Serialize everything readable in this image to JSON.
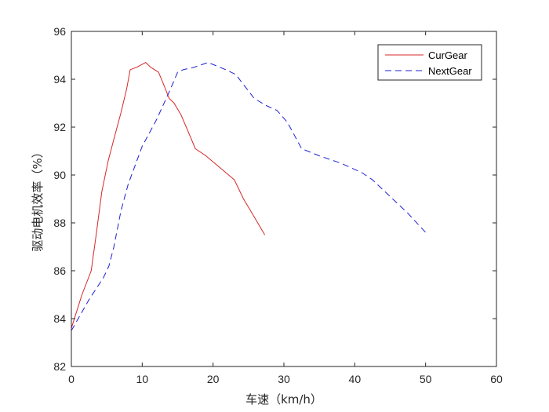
{
  "chart_data": {
    "type": "line",
    "xlabel": "车速（km/h）",
    "ylabel": "驱动电机效率（%）",
    "xlim": [
      0,
      60
    ],
    "ylim": [
      82,
      96
    ],
    "xticks": [
      0,
      10,
      20,
      30,
      40,
      50,
      60
    ],
    "yticks": [
      82,
      84,
      86,
      88,
      90,
      92,
      94,
      96
    ],
    "grid": false,
    "legend_position": "top-right",
    "series": [
      {
        "name": "CurGear",
        "color": "#d62728",
        "style": "solid",
        "x": [
          0,
          1.5,
          2.8,
          3.5,
          4.3,
          5.2,
          6.0,
          7.0,
          7.8,
          8.3,
          9.2,
          10.5,
          11.2,
          12.3,
          13.0,
          13.8,
          14.5,
          15.5,
          16.5,
          17.5,
          19.0,
          21.0,
          23.0,
          24.3,
          25.5,
          27.3
        ],
        "y": [
          83.6,
          85.0,
          86.0,
          87.5,
          89.3,
          90.6,
          91.5,
          92.6,
          93.6,
          94.4,
          94.5,
          94.7,
          94.5,
          94.3,
          93.8,
          93.2,
          93.0,
          92.5,
          91.8,
          91.1,
          90.8,
          90.3,
          89.8,
          89.0,
          88.4,
          87.5
        ]
      },
      {
        "name": "NextGear",
        "color": "#1f1fd6",
        "style": "dashed",
        "x": [
          0,
          2.5,
          4.5,
          5.3,
          6.0,
          7.0,
          8.0,
          9.0,
          10.0,
          12.0,
          14.0,
          15.0,
          15.8,
          17.3,
          19.3,
          21.8,
          23.2,
          24.5,
          25.8,
          27.5,
          29.0,
          30.5,
          32.5,
          35.0,
          38.0,
          41.0,
          42.5,
          45.0,
          47.5,
          50.0
        ],
        "y": [
          83.5,
          84.8,
          85.7,
          86.2,
          87.0,
          88.5,
          89.6,
          90.4,
          91.2,
          92.3,
          93.6,
          94.3,
          94.4,
          94.5,
          94.7,
          94.4,
          94.2,
          93.7,
          93.2,
          92.9,
          92.7,
          92.2,
          91.1,
          90.8,
          90.5,
          90.1,
          89.8,
          89.1,
          88.4,
          87.6
        ]
      }
    ]
  }
}
